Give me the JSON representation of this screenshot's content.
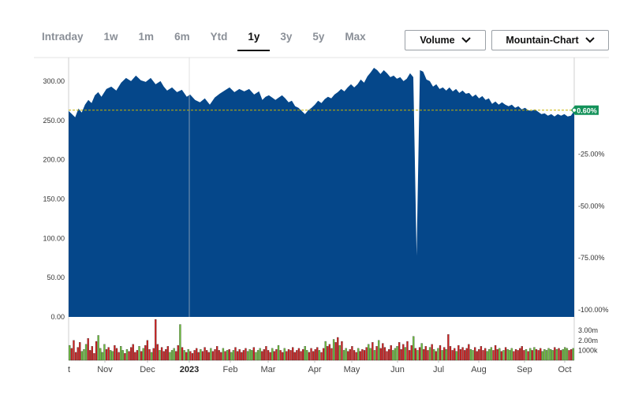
{
  "tabs": [
    {
      "label": "Intraday",
      "active": false
    },
    {
      "label": "1w",
      "active": false
    },
    {
      "label": "1m",
      "active": false
    },
    {
      "label": "6m",
      "active": false
    },
    {
      "label": "Ytd",
      "active": false
    },
    {
      "label": "1y",
      "active": true
    },
    {
      "label": "3y",
      "active": false
    },
    {
      "label": "5y",
      "active": false
    },
    {
      "label": "Max",
      "active": false
    }
  ],
  "controls": {
    "volume_label": "Volume",
    "chart_type_label": "Mountain-Chart"
  },
  "colors": {
    "area_fill": "#05478a",
    "volume_up": "#6fc23f",
    "volume_down": "#d42020",
    "badge": "#14925a",
    "reference_line": "#c8b400"
  },
  "chart_data": {
    "type": "area",
    "y_left": {
      "ticks": [
        "0.00",
        "50.00",
        "100.00",
        "150.00",
        "200.00",
        "250.00",
        "300.00"
      ],
      "range": [
        0,
        330
      ]
    },
    "y_right": {
      "ticks": [
        "-100.00%",
        "-75.00%",
        "-50.00%",
        "-25.00%"
      ],
      "range_percent": [
        -100,
        25
      ]
    },
    "badge": "0.60%",
    "reference_value": 263,
    "x_labels": [
      "t",
      "Nov",
      "Dec",
      "2023",
      "Feb",
      "Mar",
      "Apr",
      "May",
      "Jun",
      "Jul",
      "Aug",
      "Sep",
      "Oct"
    ],
    "x_labels_bold": [
      "2023"
    ],
    "volume_axis": {
      "ticks": [
        "3.00m",
        "2.00m",
        "1000k"
      ],
      "range": [
        0,
        4200000
      ]
    },
    "price_series": [
      [
        0,
        262
      ],
      [
        2,
        258
      ],
      [
        4,
        254
      ],
      [
        6,
        265
      ],
      [
        8,
        260
      ],
      [
        10,
        270
      ],
      [
        12,
        276
      ],
      [
        14,
        272
      ],
      [
        16,
        282
      ],
      [
        18,
        286
      ],
      [
        20,
        280
      ],
      [
        23,
        290
      ],
      [
        26,
        293
      ],
      [
        29,
        288
      ],
      [
        32,
        298
      ],
      [
        35,
        304
      ],
      [
        38,
        300
      ],
      [
        41,
        307
      ],
      [
        44,
        301
      ],
      [
        47,
        299
      ],
      [
        50,
        304
      ],
      [
        53,
        296
      ],
      [
        56,
        300
      ],
      [
        58,
        293
      ],
      [
        60,
        288
      ],
      [
        63,
        292
      ],
      [
        66,
        286
      ],
      [
        69,
        289
      ],
      [
        72,
        280
      ],
      [
        74,
        283
      ],
      [
        77,
        276
      ],
      [
        80,
        273
      ],
      [
        83,
        278
      ],
      [
        86,
        270
      ],
      [
        89,
        279
      ],
      [
        92,
        284
      ],
      [
        95,
        288
      ],
      [
        98,
        292
      ],
      [
        101,
        286
      ],
      [
        104,
        290
      ],
      [
        107,
        287
      ],
      [
        110,
        290
      ],
      [
        113,
        283
      ],
      [
        116,
        287
      ],
      [
        118,
        276
      ],
      [
        120,
        280
      ],
      [
        122,
        282
      ],
      [
        124,
        279
      ],
      [
        126,
        276
      ],
      [
        128,
        279
      ],
      [
        130,
        282
      ],
      [
        132,
        278
      ],
      [
        134,
        273
      ],
      [
        136,
        275
      ],
      [
        138,
        268
      ],
      [
        140,
        266
      ],
      [
        142,
        262
      ],
      [
        144,
        258
      ],
      [
        146,
        263
      ],
      [
        148,
        266
      ],
      [
        150,
        270
      ],
      [
        152,
        275
      ],
      [
        154,
        272
      ],
      [
        156,
        277
      ],
      [
        158,
        280
      ],
      [
        160,
        278
      ],
      [
        162,
        283
      ],
      [
        164,
        286
      ],
      [
        166,
        290
      ],
      [
        168,
        287
      ],
      [
        170,
        292
      ],
      [
        172,
        296
      ],
      [
        174,
        292
      ],
      [
        176,
        296
      ],
      [
        178,
        302
      ],
      [
        180,
        298
      ],
      [
        182,
        306
      ],
      [
        184,
        311
      ],
      [
        186,
        317
      ],
      [
        188,
        314
      ],
      [
        190,
        309
      ],
      [
        192,
        314
      ],
      [
        194,
        310
      ],
      [
        196,
        305
      ],
      [
        198,
        307
      ],
      [
        200,
        303
      ],
      [
        202,
        305
      ],
      [
        204,
        300
      ],
      [
        206,
        303
      ],
      [
        208,
        310
      ],
      [
        210,
        305
      ],
      [
        212,
        78
      ],
      [
        214,
        314
      ],
      [
        216,
        312
      ],
      [
        218,
        302
      ],
      [
        220,
        300
      ],
      [
        222,
        293
      ],
      [
        224,
        296
      ],
      [
        226,
        290
      ],
      [
        228,
        292
      ],
      [
        230,
        288
      ],
      [
        232,
        292
      ],
      [
        234,
        287
      ],
      [
        236,
        290
      ],
      [
        238,
        285
      ],
      [
        240,
        288
      ],
      [
        242,
        284
      ],
      [
        244,
        285
      ],
      [
        246,
        280
      ],
      [
        248,
        283
      ],
      [
        250,
        278
      ],
      [
        252,
        281
      ],
      [
        254,
        276
      ],
      [
        256,
        278
      ],
      [
        258,
        271
      ],
      [
        260,
        274
      ],
      [
        262,
        270
      ],
      [
        264,
        273
      ],
      [
        266,
        270
      ],
      [
        268,
        268
      ],
      [
        270,
        270
      ],
      [
        272,
        266
      ],
      [
        274,
        268
      ],
      [
        276,
        264
      ],
      [
        278,
        266
      ],
      [
        280,
        263
      ],
      [
        282,
        262
      ],
      [
        284,
        264
      ],
      [
        286,
        261
      ],
      [
        288,
        258
      ],
      [
        290,
        259
      ],
      [
        292,
        256
      ],
      [
        294,
        258
      ],
      [
        296,
        255
      ],
      [
        298,
        258
      ],
      [
        300,
        256
      ],
      [
        302,
        258
      ],
      [
        304,
        255
      ],
      [
        306,
        256
      ],
      [
        308,
        262
      ]
    ],
    "volume_series": [
      1.5,
      1.2,
      2.0,
      0.8,
      1.3,
      1.8,
      0.9,
      1.1,
      1.6,
      2.2,
      1.0,
      1.4,
      0.7,
      1.9,
      2.5,
      1.2,
      0.8,
      1.6,
      1.1,
      1.3,
      1.0,
      0.9,
      1.5,
      1.2,
      0.8,
      1.4,
      1.0,
      0.7,
      1.1,
      0.9,
      1.3,
      1.6,
      0.8,
      1.0,
      1.4,
      0.9,
      1.2,
      1.5,
      2.0,
      1.1,
      0.8,
      1.2,
      4.1,
      1.6,
      1.0,
      1.3,
      0.9,
      1.1,
      1.4,
      0.8,
      1.0,
      1.2,
      0.9,
      1.5,
      3.6,
      1.3,
      1.0,
      0.8,
      1.1,
      0.9,
      0.7,
      1.0,
      1.2,
      0.8,
      1.1,
      0.9,
      1.3,
      1.0,
      0.8,
      1.2,
      0.9,
      1.1,
      1.4,
      1.0,
      0.8,
      1.2,
      0.9,
      1.0,
      1.1,
      0.8,
      1.0,
      1.3,
      0.9,
      1.1,
      0.8,
      1.0,
      1.2,
      0.9,
      1.1,
      1.0,
      1.3,
      0.8,
      1.0,
      1.2,
      0.9,
      1.1,
      1.4,
      1.0,
      0.8,
      1.2,
      0.9,
      1.1,
      1.5,
      1.0,
      0.8,
      1.2,
      0.9,
      1.1,
      1.0,
      1.3,
      0.8,
      1.0,
      1.2,
      0.9,
      1.1,
      1.4,
      1.0,
      0.8,
      1.2,
      0.9,
      1.1,
      1.3,
      1.0,
      0.8,
      1.2,
      1.9,
      1.4,
      1.6,
      1.2,
      2.1,
      1.8,
      2.3,
      1.5,
      1.9,
      1.0,
      1.2,
      0.9,
      1.1,
      1.4,
      1.0,
      0.8,
      1.2,
      0.9,
      1.1,
      1.0,
      1.3,
      1.6,
      1.2,
      1.8,
      1.0,
      1.4,
      2.0,
      1.2,
      1.7,
      1.3,
      0.9,
      1.1,
      1.5,
      1.0,
      1.2,
      1.4,
      1.8,
      1.1,
      1.6,
      1.3,
      1.9,
      1.0,
      1.5,
      2.4,
      1.2,
      1.0,
      1.3,
      1.7,
      1.1,
      1.4,
      1.0,
      1.3,
      1.6,
      1.1,
      0.9,
      1.2,
      1.5,
      1.0,
      1.3,
      1.1,
      2.6,
      1.4,
      1.0,
      1.2,
      0.9,
      1.5,
      1.1,
      1.3,
      1.0,
      1.2,
      1.6,
      1.1,
      1.0,
      1.3,
      0.9,
      1.1,
      1.4,
      1.0,
      1.2,
      0.9,
      1.1,
      1.3,
      1.0,
      1.5,
      1.1,
      1.2,
      0.9,
      1.0,
      1.3,
      1.1,
      1.0,
      1.2,
      0.9,
      1.1,
      1.0,
      1.2,
      1.4,
      1.0,
      1.1,
      0.9,
      1.2,
      1.0,
      1.3,
      1.1,
      1.0,
      1.2,
      0.9,
      1.1,
      1.0,
      1.2,
      1.1,
      1.0,
      1.3,
      1.1,
      1.2,
      1.0,
      1.1,
      1.3,
      1.2,
      1.0,
      1.1,
      1.2
    ]
  }
}
